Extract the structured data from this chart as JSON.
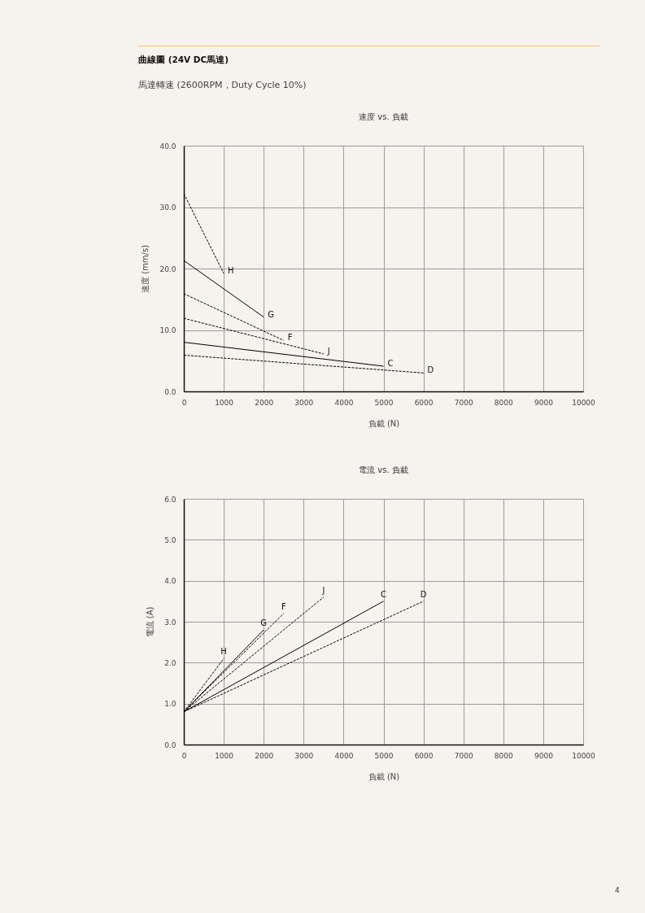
{
  "chart_data": [
    {
      "type": "other",
      "title": "曲線圖 (24V DC馬達)",
      "subtitle": "馬達轉速 (2600RPM，Duty Cycle 10%)",
      "annotations": [
        "4"
      ]
    },
    {
      "type": "line",
      "title": "速度 vs. 負載",
      "xlabel": "負載 (N)",
      "ylabel": "速度 (mm/s)",
      "xlim": [
        0,
        10000
      ],
      "xticks": [
        0,
        1000,
        2000,
        3000,
        4000,
        5000,
        6000,
        7000,
        8000,
        9000,
        10000
      ],
      "ylim": [
        0,
        40
      ],
      "yticks": [
        {
          "value": 0,
          "label": "0.0"
        },
        {
          "value": 10,
          "label": "10.0"
        },
        {
          "value": 20,
          "label": "20.0"
        },
        {
          "value": 30,
          "label": "30.0"
        },
        {
          "value": 40,
          "label": "40.0"
        }
      ],
      "grid": true,
      "series": [
        {
          "name": "H",
          "color": "#000000",
          "line_style": "dashed",
          "x": [
            0,
            1000
          ],
          "values": [
            32.2,
            19.2
          ]
        },
        {
          "name": "G",
          "color": "#000000",
          "line_style": "solid",
          "x": [
            0,
            2000
          ],
          "values": [
            21.3,
            12.1
          ]
        },
        {
          "name": "F",
          "color": "#000000",
          "line_style": "dashed",
          "x": [
            0,
            2500
          ],
          "values": [
            15.9,
            8.3
          ]
        },
        {
          "name": "J",
          "color": "#000000",
          "line_style": "dashed",
          "x": [
            0,
            3500
          ],
          "values": [
            11.9,
            6.1
          ]
        },
        {
          "name": "C",
          "color": "#000000",
          "line_style": "solid",
          "x": [
            0,
            5000
          ],
          "values": [
            8.0,
            4.1
          ]
        },
        {
          "name": "D",
          "color": "#000000",
          "line_style": "dashed",
          "x": [
            0,
            6000
          ],
          "values": [
            5.9,
            3.0
          ]
        }
      ]
    },
    {
      "type": "line",
      "title": "電流 vs. 負載",
      "xlabel": "負載 (N)",
      "ylabel": "電流 (A)",
      "xlim": [
        0,
        10000
      ],
      "xticks": [
        0,
        1000,
        2000,
        3000,
        4000,
        5000,
        6000,
        7000,
        8000,
        9000,
        10000
      ],
      "ylim": [
        0,
        6
      ],
      "yticks": [
        {
          "value": 0,
          "label": "0.0"
        },
        {
          "value": 1,
          "label": "1.0"
        },
        {
          "value": 2,
          "label": "2.0"
        },
        {
          "value": 3,
          "label": "3.0"
        },
        {
          "value": 4,
          "label": "4.0"
        },
        {
          "value": 5,
          "label": "5.0"
        },
        {
          "value": 6,
          "label": "6.0"
        }
      ],
      "grid": true,
      "series": [
        {
          "name": "H",
          "color": "#000000",
          "line_style": "dashed",
          "x": [
            0,
            1000
          ],
          "values": [
            0.8,
            2.1
          ]
        },
        {
          "name": "G",
          "color": "#000000",
          "line_style": "solid",
          "x": [
            0,
            2000
          ],
          "values": [
            0.8,
            2.8
          ]
        },
        {
          "name": "F",
          "color": "#000000",
          "line_style": "dashed",
          "x": [
            0,
            2500
          ],
          "values": [
            0.8,
            3.2
          ]
        },
        {
          "name": "J",
          "color": "#000000",
          "line_style": "dashed",
          "x": [
            0,
            3500
          ],
          "values": [
            0.8,
            3.6
          ]
        },
        {
          "name": "C",
          "color": "#000000",
          "line_style": "solid",
          "x": [
            0,
            5000
          ],
          "values": [
            0.8,
            3.5
          ]
        },
        {
          "name": "D",
          "color": "#000000",
          "line_style": "dashed",
          "x": [
            0,
            6000
          ],
          "values": [
            0.8,
            3.5
          ]
        }
      ]
    }
  ]
}
